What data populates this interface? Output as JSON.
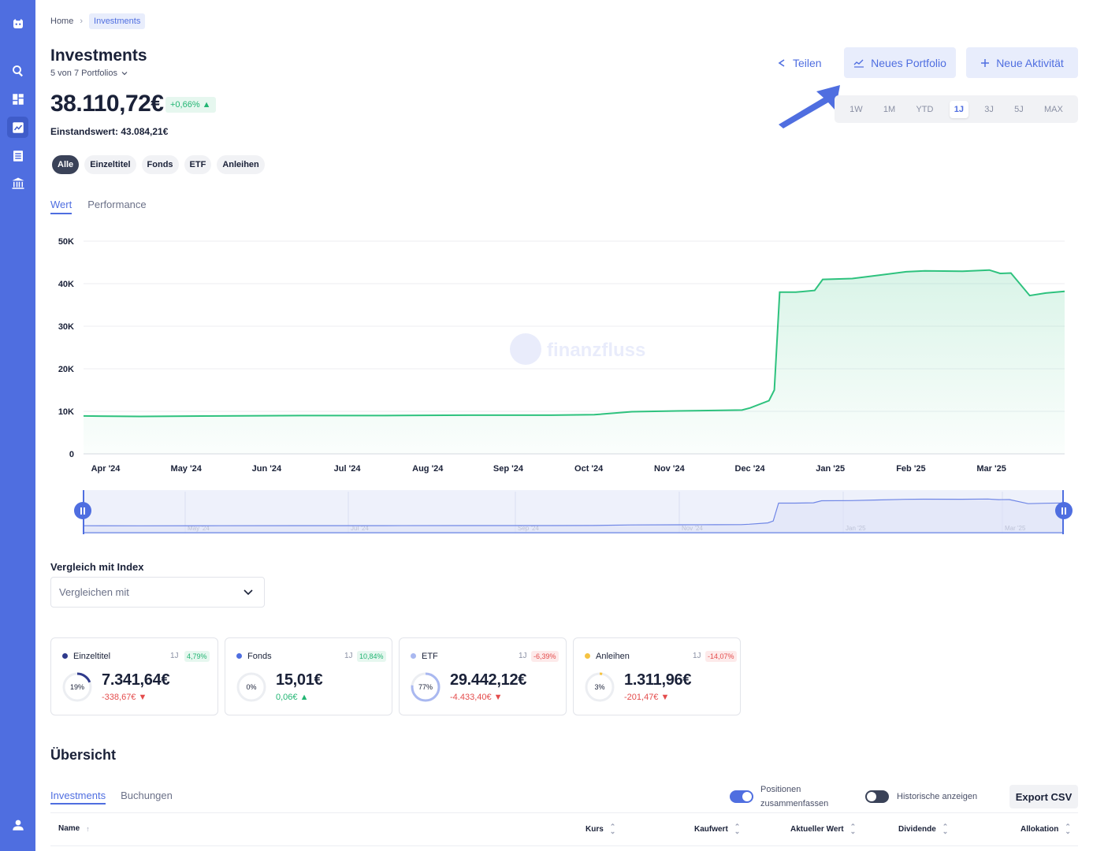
{
  "breadcrumb": {
    "home": "Home",
    "current": "Investments"
  },
  "header": {
    "title": "Investments",
    "subtitle": "5 von 7 Portfolios",
    "total_value": "38.110,72€",
    "change_pct": "+0,66% ▲",
    "cost_basis": "Einstandswert: 43.084,21€"
  },
  "actions": {
    "share": "Teilen",
    "new_portfolio": "Neues Portfolio",
    "new_activity": "Neue Aktivität"
  },
  "time_ranges": [
    {
      "label": "1W"
    },
    {
      "label": "1M"
    },
    {
      "label": "YTD"
    },
    {
      "label": "1J",
      "active": true
    },
    {
      "label": "3J"
    },
    {
      "label": "5J"
    },
    {
      "label": "MAX"
    }
  ],
  "filters": [
    {
      "label": "Alle",
      "active": true
    },
    {
      "label": "Einzeltitel"
    },
    {
      "label": "Fonds"
    },
    {
      "label": "ETF"
    },
    {
      "label": "Anleihen"
    }
  ],
  "chart_tabs": [
    {
      "label": "Wert",
      "active": true
    },
    {
      "label": "Performance"
    }
  ],
  "watermark": "finanzfluss",
  "chart_data": {
    "type": "area",
    "y_ticks": [
      "50K",
      "40K",
      "30K",
      "20K",
      "10K",
      "0"
    ],
    "x_ticks": [
      "Apr '24",
      "May '24",
      "Jun '24",
      "Jul '24",
      "Aug '24",
      "Sep '24",
      "Oct '24",
      "Nov '24",
      "Dec '24",
      "Jan '25",
      "Feb '25",
      "Mar '25"
    ],
    "ylim": [
      0,
      50000
    ],
    "color": "#2ec27e",
    "series": [
      {
        "x": [
          "2024-03-25",
          "2024-04-15",
          "2024-05-15",
          "2024-06-15",
          "2024-07-15",
          "2024-08-15",
          "2024-09-15",
          "2024-10-01",
          "2024-10-15",
          "2024-11-01",
          "2024-11-15",
          "2024-11-25",
          "2024-11-28",
          "2024-12-05",
          "2024-12-07",
          "2024-12-09",
          "2024-12-15",
          "2024-12-22",
          "2024-12-25",
          "2025-01-05",
          "2025-01-15",
          "2025-01-25",
          "2025-02-01",
          "2025-02-15",
          "2025-02-25",
          "2025-03-01",
          "2025-03-05",
          "2025-03-12",
          "2025-03-18",
          "2025-03-25"
        ],
        "values": [
          8900,
          8800,
          8900,
          9000,
          9000,
          9100,
          9100,
          9200,
          9900,
          10100,
          10200,
          10300,
          10800,
          12500,
          15000,
          38000,
          38000,
          38400,
          41000,
          41200,
          42000,
          42800,
          43000,
          42900,
          43200,
          42400,
          42500,
          37200,
          37800,
          38200
        ]
      }
    ],
    "navigator_ticks": [
      "May '24",
      "Jul '24",
      "Sep '24",
      "Nov '24",
      "Jan '25",
      "Mar '25"
    ]
  },
  "compare": {
    "label": "Vergleich mit Index",
    "placeholder": "Vergleichen mit"
  },
  "cards": [
    {
      "name": "Einzeltitel",
      "color": "#2e3a8c",
      "period": "1J",
      "pct": "4,79%",
      "sign": "pos",
      "alloc": "19%",
      "alloc_value": 0.19,
      "amount": "7.341,64€",
      "delta": "-338,67€ ▼",
      "delta_sign": "neg"
    },
    {
      "name": "Fonds",
      "color": "#4f6ee0",
      "period": "1J",
      "pct": "10,84%",
      "sign": "pos",
      "alloc": "0%",
      "alloc_value": 0.0,
      "amount": "15,01€",
      "delta": "0,06€ ▲",
      "delta_sign": "pos"
    },
    {
      "name": "ETF",
      "color": "#a9b8f0",
      "period": "1J",
      "pct": "-6,39%",
      "sign": "neg",
      "alloc": "77%",
      "alloc_value": 0.77,
      "amount": "29.442,12€",
      "delta": "-4.433,40€ ▼",
      "delta_sign": "neg"
    },
    {
      "name": "Anleihen",
      "color": "#f5c342",
      "period": "1J",
      "pct": "-14,07%",
      "sign": "neg",
      "alloc": "3%",
      "alloc_value": 0.03,
      "amount": "1.311,96€",
      "delta": "-201,47€ ▼",
      "delta_sign": "neg"
    }
  ],
  "overview": {
    "title": "Übersicht",
    "tabs": [
      {
        "label": "Investments",
        "active": true
      },
      {
        "label": "Buchungen"
      }
    ],
    "toggle_merge": {
      "label_line1": "Positionen",
      "label_line2": "zusammenfassen",
      "on": true
    },
    "toggle_history": {
      "label": "Historische anzeigen",
      "on": false
    },
    "export": "Export CSV",
    "columns": [
      "Name",
      "Kurs",
      "Kaufwert",
      "Aktueller Wert",
      "Dividende",
      "Allokation"
    ]
  }
}
